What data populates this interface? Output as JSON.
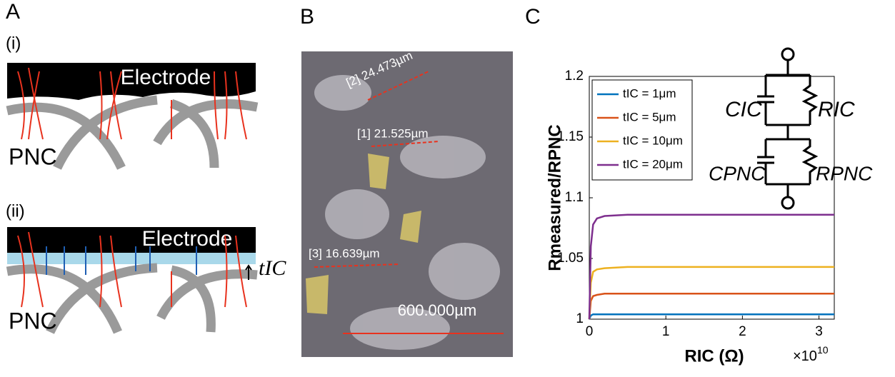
{
  "panel_a": {
    "label": "A",
    "sub_i": "(i)",
    "sub_ii": "(ii)",
    "electrode_i": "Electrode",
    "electrode_ii": "Electrode",
    "pnc_i": "PNC",
    "pnc_ii": "PNC",
    "thickness": "tIC"
  },
  "panel_b": {
    "label": "B",
    "measure_2": "[2] 24.473µm",
    "measure_1": "[1] 21.525µm",
    "measure_3": "[3] 16.639µm",
    "scale_bar": "600.000µm"
  },
  "panel_c": {
    "label": "C",
    "circuit": {
      "c_ic": "CIC",
      "r_ic": "RIC",
      "c_pnc": "CPNC",
      "r_pnc": "RPNC"
    }
  },
  "chart_data": {
    "type": "line",
    "y_label": "Rmeasured/RPNC",
    "x_label": "RIC (Ω)",
    "x_multiplier": "×10",
    "x_multiplier_exp": "10",
    "x": [
      0,
      0.02,
      0.05,
      0.1,
      0.2,
      0.5,
      1,
      2,
      3.2
    ],
    "series": [
      {
        "name": "tIC = 1μm",
        "color": "#0072bd",
        "values": [
          1,
          1.003,
          1.004,
          1.004,
          1.004,
          1.004,
          1.004,
          1.004,
          1.004
        ]
      },
      {
        "name": "tIC = 5μm",
        "color": "#d95319",
        "values": [
          1,
          1.015,
          1.019,
          1.02,
          1.021,
          1.021,
          1.021,
          1.021,
          1.021
        ]
      },
      {
        "name": "tIC = 10μm",
        "color": "#edb120",
        "values": [
          1,
          1.03,
          1.039,
          1.041,
          1.042,
          1.043,
          1.043,
          1.043,
          1.043
        ]
      },
      {
        "name": "tIC = 20μm",
        "color": "#7e2f8e",
        "values": [
          1,
          1.06,
          1.078,
          1.083,
          1.085,
          1.086,
          1.086,
          1.086,
          1.086
        ]
      }
    ],
    "xlim": [
      0,
      3.2
    ],
    "ylim": [
      1,
      1.2
    ],
    "xticks": [
      0,
      1,
      2,
      3
    ],
    "yticks": [
      1,
      1.05,
      1.1,
      1.15,
      1.2
    ]
  }
}
